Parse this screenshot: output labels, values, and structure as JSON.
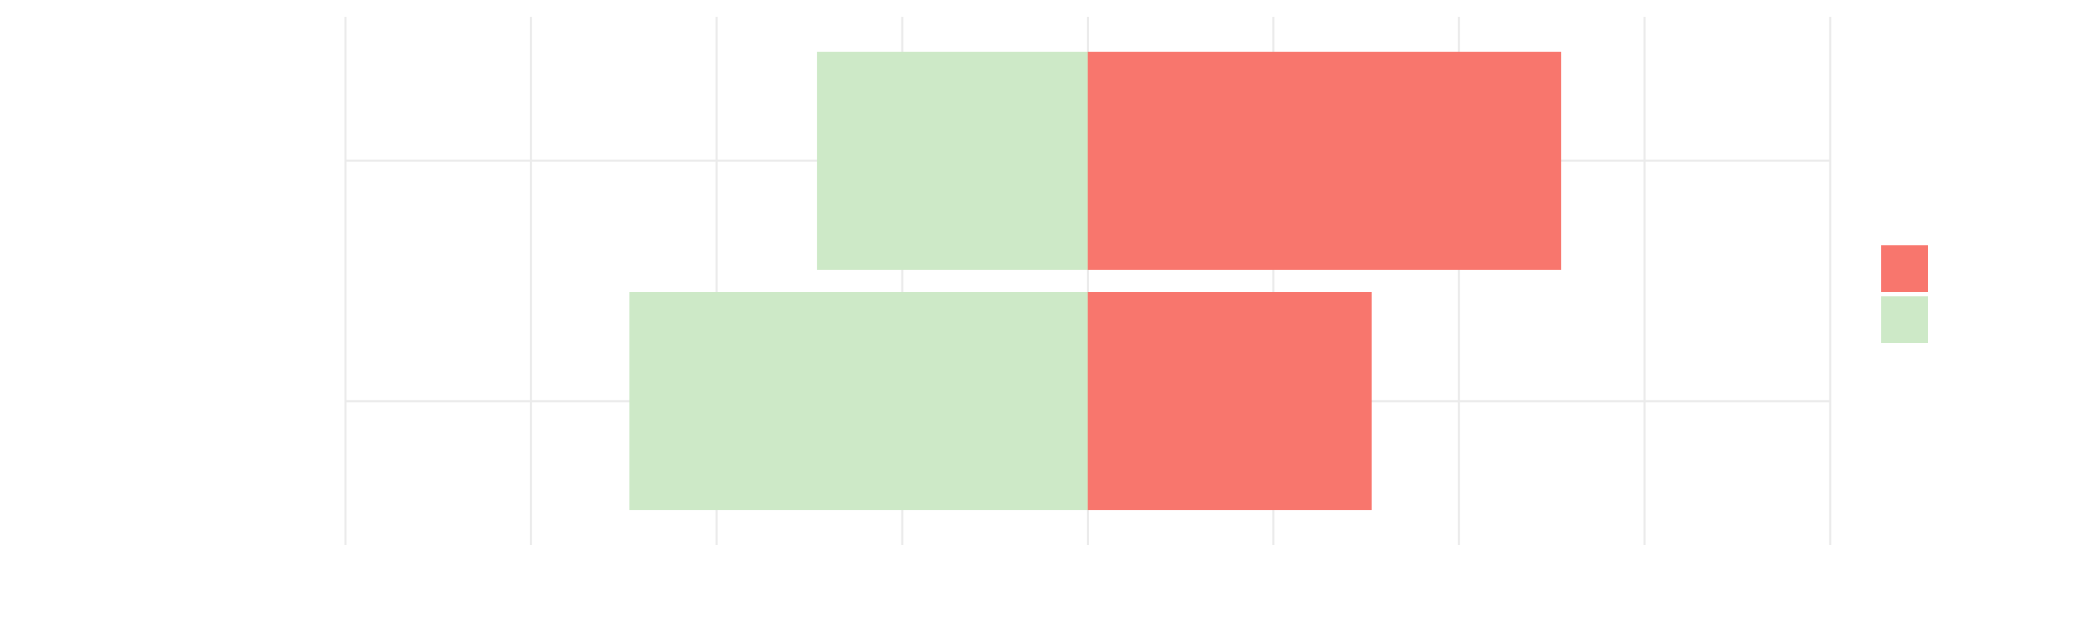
{
  "chart_data": {
    "type": "diverging_bar",
    "categories": [
      null,
      null
    ],
    "series": [
      {
        "color": "#f8766d",
        "values": [
          2.55,
          1.53
        ]
      },
      {
        "color": "#cde9c7",
        "values": [
          -1.46,
          -2.47
        ]
      }
    ],
    "xlim": [
      -4,
      4
    ],
    "xticks": [
      -4,
      -3,
      -2,
      -1,
      0,
      1,
      2,
      3,
      4
    ],
    "grid": true,
    "legend": "right"
  }
}
